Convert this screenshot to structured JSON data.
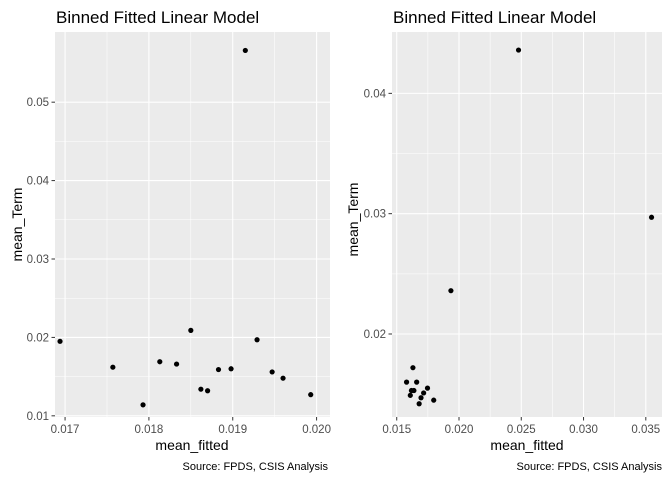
{
  "chart_data": [
    {
      "type": "scatter",
      "title": "Binned Fitted Linear Model",
      "xlabel": "mean_fitted",
      "ylabel": "mean_Term",
      "caption": "Source: FPDS, CSIS Analysis",
      "xlim": [
        0.01688,
        0.02016
      ],
      "ylim": [
        0.00985,
        0.05895
      ],
      "x_ticks": [
        {
          "value": 0.017,
          "label": "0.017"
        },
        {
          "value": 0.018,
          "label": "0.018"
        },
        {
          "value": 0.019,
          "label": "0.019"
        },
        {
          "value": 0.02,
          "label": "0.020"
        }
      ],
      "y_ticks": [
        {
          "value": 0.01,
          "label": "0.01"
        },
        {
          "value": 0.02,
          "label": "0.02"
        },
        {
          "value": 0.03,
          "label": "0.03"
        },
        {
          "value": 0.04,
          "label": "0.04"
        },
        {
          "value": 0.05,
          "label": "0.05"
        }
      ],
      "grid": true,
      "points": [
        {
          "x": 0.01694,
          "y": 0.0195
        },
        {
          "x": 0.01757,
          "y": 0.0162
        },
        {
          "x": 0.01793,
          "y": 0.0114
        },
        {
          "x": 0.01813,
          "y": 0.0169
        },
        {
          "x": 0.01833,
          "y": 0.0166
        },
        {
          "x": 0.0185,
          "y": 0.0209
        },
        {
          "x": 0.01862,
          "y": 0.0134
        },
        {
          "x": 0.0187,
          "y": 0.0132
        },
        {
          "x": 0.01883,
          "y": 0.0159
        },
        {
          "x": 0.01898,
          "y": 0.016
        },
        {
          "x": 0.01915,
          "y": 0.0566
        },
        {
          "x": 0.01929,
          "y": 0.0197
        },
        {
          "x": 0.01947,
          "y": 0.0156
        },
        {
          "x": 0.0196,
          "y": 0.0148
        },
        {
          "x": 0.01993,
          "y": 0.0127
        }
      ]
    },
    {
      "type": "scatter",
      "title": "Binned Fitted Linear Model",
      "xlabel": "mean_fitted",
      "ylabel": "mean_Term",
      "caption": "Source: FPDS, CSIS Analysis",
      "xlim": [
        0.01462,
        0.0363
      ],
      "ylim": [
        0.0131,
        0.0451
      ],
      "x_ticks": [
        {
          "value": 0.015,
          "label": "0.015"
        },
        {
          "value": 0.02,
          "label": "0.020"
        },
        {
          "value": 0.025,
          "label": "0.025"
        },
        {
          "value": 0.03,
          "label": "0.030"
        },
        {
          "value": 0.035,
          "label": "0.035"
        }
      ],
      "y_ticks": [
        {
          "value": 0.02,
          "label": "0.02"
        },
        {
          "value": 0.03,
          "label": "0.03"
        },
        {
          "value": 0.04,
          "label": "0.04"
        }
      ],
      "grid": true,
      "points": [
        {
          "x": 0.01579,
          "y": 0.016
        },
        {
          "x": 0.01609,
          "y": 0.0149
        },
        {
          "x": 0.01618,
          "y": 0.0153
        },
        {
          "x": 0.0163,
          "y": 0.0172
        },
        {
          "x": 0.01638,
          "y": 0.0153
        },
        {
          "x": 0.0166,
          "y": 0.016
        },
        {
          "x": 0.0168,
          "y": 0.0142
        },
        {
          "x": 0.01695,
          "y": 0.0147
        },
        {
          "x": 0.01716,
          "y": 0.0151
        },
        {
          "x": 0.01747,
          "y": 0.0155
        },
        {
          "x": 0.01797,
          "y": 0.0145
        },
        {
          "x": 0.01935,
          "y": 0.0236
        },
        {
          "x": 0.02478,
          "y": 0.0436
        },
        {
          "x": 0.03546,
          "y": 0.0297
        }
      ]
    }
  ]
}
